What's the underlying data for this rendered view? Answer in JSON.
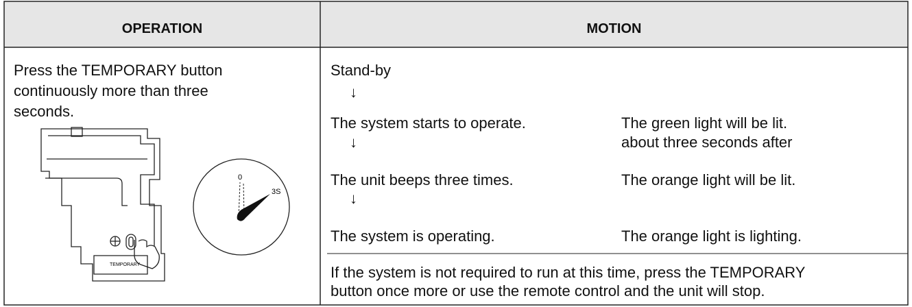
{
  "table": {
    "headers": [
      "OPERATION",
      "MOTION"
    ],
    "operation_lines": [
      "Press the TEMPORARY button",
      "continuously more than three",
      "seconds."
    ],
    "illustration": {
      "button_label": "TEMPORARY",
      "dial_labels": [
        "0",
        "3S"
      ]
    },
    "sequence": [
      "Stand-by",
      "↓",
      "The system starts to operate.",
      "↓",
      "The unit beeps three times.",
      "↓",
      "The system is operating."
    ],
    "indicators": [
      "The green light will be lit.",
      "about three seconds after",
      "The orange light will be lit.",
      "The orange light is lighting."
    ],
    "note_lines": [
      "If the system is not required to run at this time, press the TEMPORARY",
      "button once more or use the remote control and the unit will stop."
    ]
  }
}
